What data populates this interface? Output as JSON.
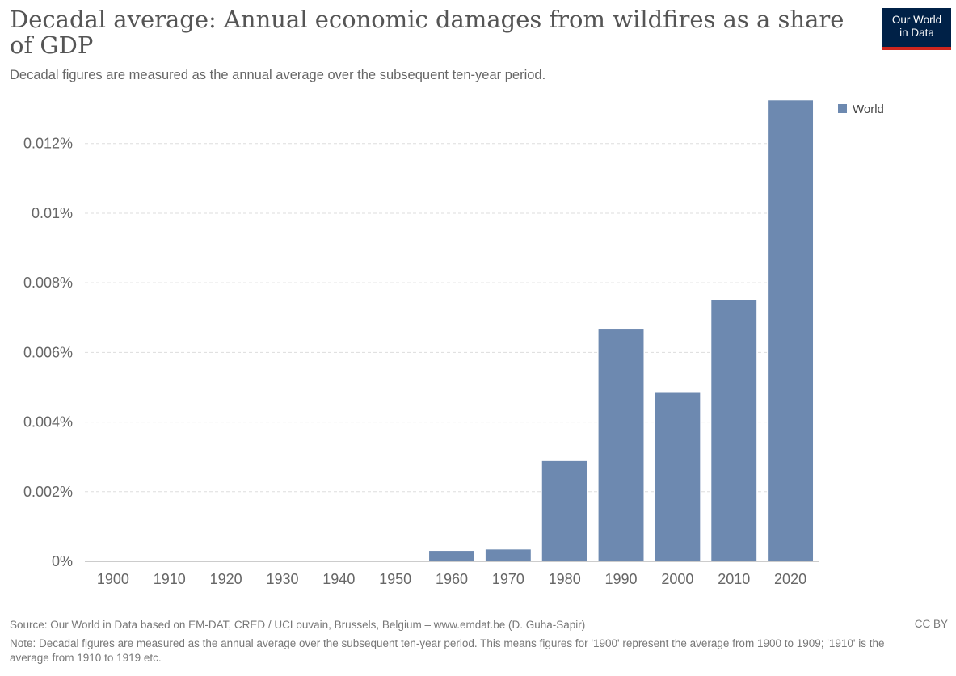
{
  "header": {
    "title": "Decadal average: Annual economic damages from wildfires as a share of GDP",
    "subtitle": "Decadal figures are measured as the annual average over the subsequent ten-year period.",
    "logo_line1": "Our World",
    "logo_line2": "in Data"
  },
  "footer": {
    "source": "Source: Our World in Data based on EM-DAT, CRED / UCLouvain, Brussels, Belgium – www.emdat.be (D. Guha-Sapir)",
    "license": "CC BY",
    "note": "Note: Decadal figures are measured as the annual average over the subsequent ten-year period. This means figures for '1900' represent the average from 1900 to 1909; '1910' is the average from 1910 to 1919 etc."
  },
  "colors": {
    "bar": "#6d89b0",
    "grid": "#dddddd",
    "logo_bg": "#002147",
    "logo_accent": "#ce261e"
  },
  "chart_data": {
    "type": "bar",
    "title": "Decadal average: Annual economic damages from wildfires as a share of GDP",
    "categories": [
      "1900",
      "1910",
      "1920",
      "1930",
      "1940",
      "1950",
      "1960",
      "1970",
      "1980",
      "1990",
      "2000",
      "2010",
      "2020"
    ],
    "series": [
      {
        "name": "World",
        "values": [
          0,
          0,
          0,
          0,
          0,
          0,
          0.0003,
          0.00034,
          0.00288,
          0.00668,
          0.00486,
          0.0075,
          0.01324
        ]
      }
    ],
    "ylim": [
      0,
      0.0132
    ],
    "y_ticks": [
      0,
      0.002,
      0.004,
      0.006,
      0.008,
      0.01,
      0.012
    ],
    "y_tick_labels": [
      "0%",
      "0.002%",
      "0.004%",
      "0.006%",
      "0.008%",
      "0.01%",
      "0.012%"
    ],
    "grid": "horizontal-dashed",
    "legend": "top-right"
  }
}
